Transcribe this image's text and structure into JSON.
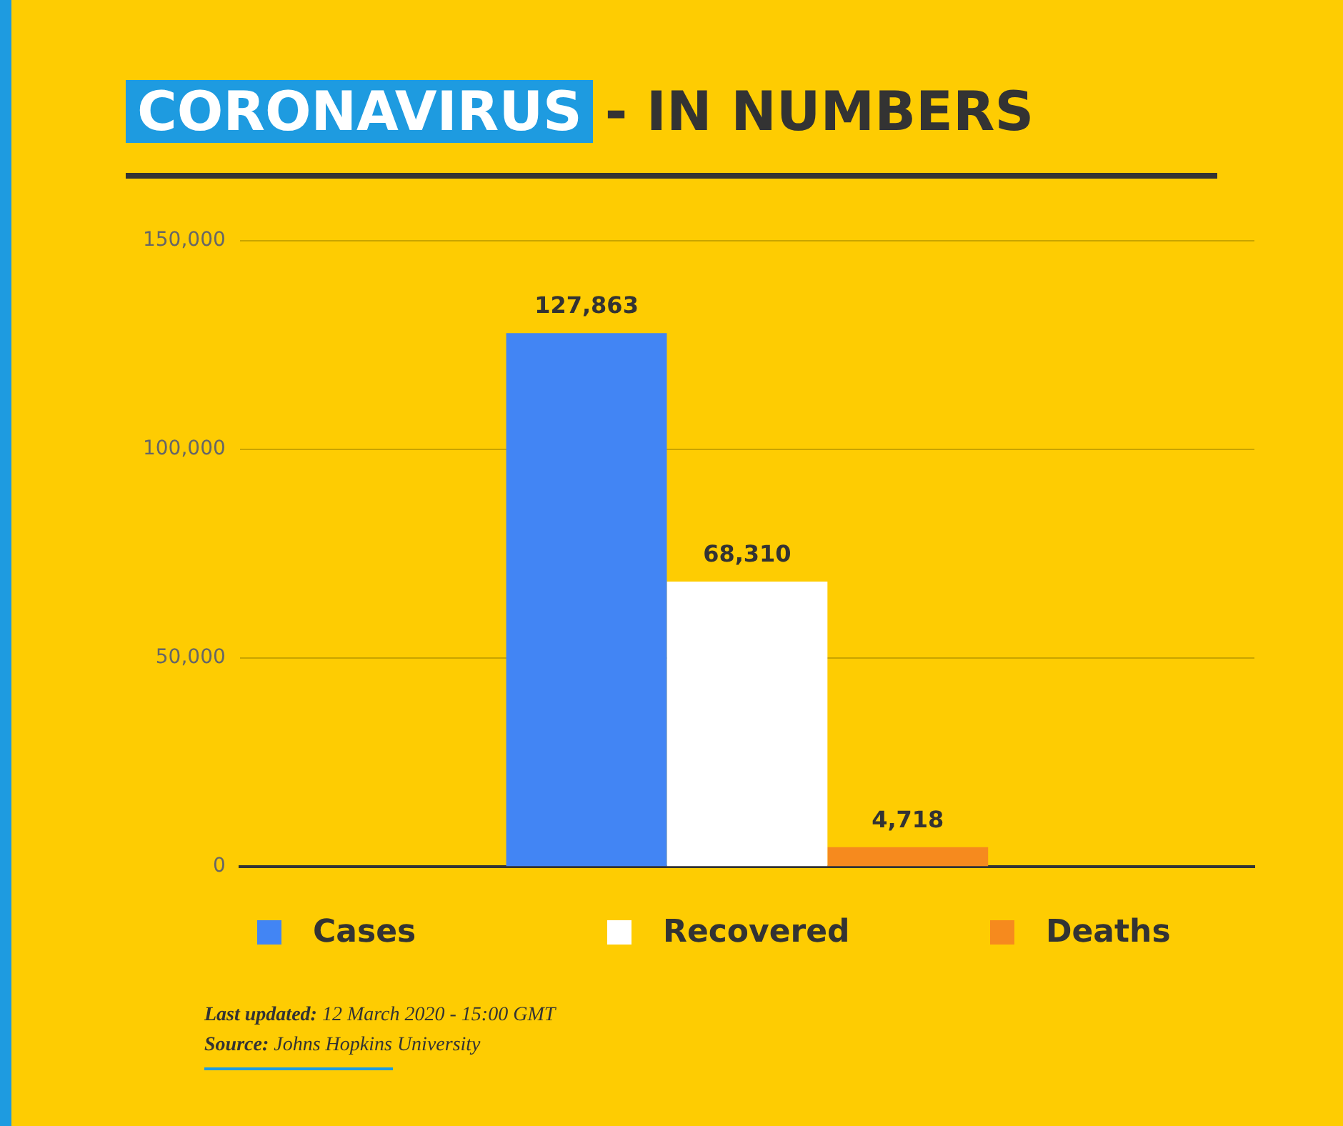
{
  "chart_data": {
    "type": "bar",
    "title": "CORONAVIRUS - IN NUMBERS",
    "categories": [
      null
    ],
    "series": [
      {
        "name": "Cases",
        "color": "#4285f4",
        "values": [
          127863
        ],
        "value_labels": [
          "127,863"
        ]
      },
      {
        "name": "Recovered",
        "color": "#ffffff",
        "values": [
          68310
        ],
        "value_labels": [
          "68,310"
        ]
      },
      {
        "name": "Deaths",
        "color": "#f68a1e",
        "values": [
          4718
        ],
        "value_labels": [
          "4,718"
        ]
      }
    ],
    "ylim": [
      0,
      150000
    ],
    "yticks": [
      0,
      {
        "value": 50000,
        "label": "50,000"
      },
      {
        "value": 100000,
        "label": "100,000"
      },
      {
        "value": 150000,
        "label": "150,000"
      }
    ],
    "grid": "y",
    "legend": "bottom",
    "annotations": [
      "Last updated: 12 March 2020 - 15:00 GMT",
      "Source: Johns Hopkins University"
    ]
  }
}
